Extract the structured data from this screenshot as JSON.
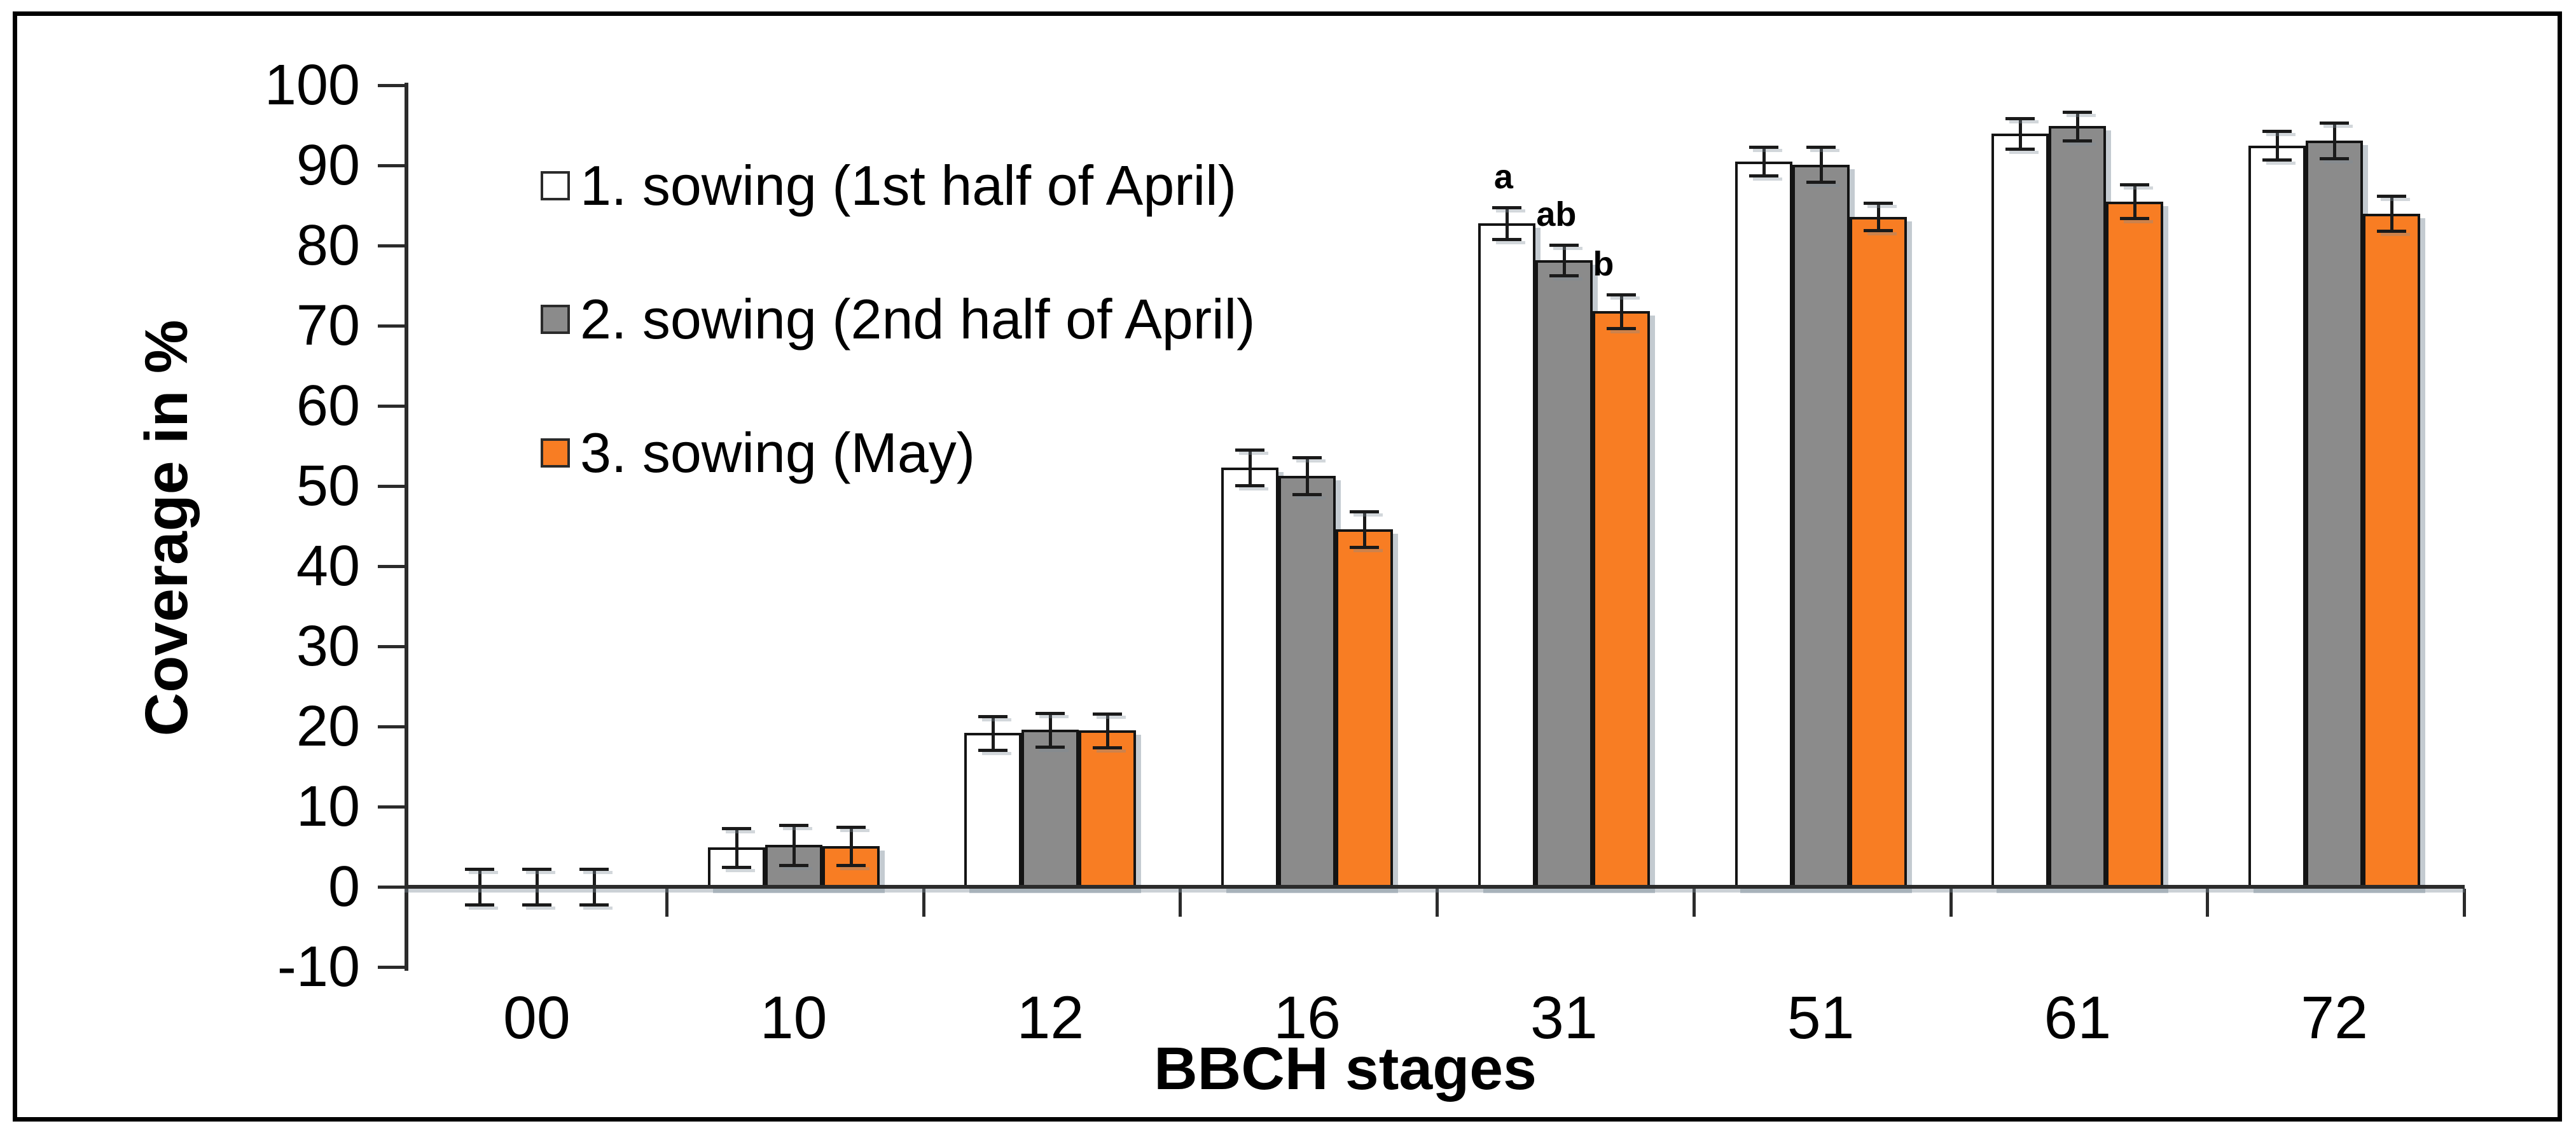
{
  "figure": {
    "kind": "bar chart with error bars",
    "background": "#ffffff",
    "border_color": "#000000"
  },
  "chart_data": {
    "type": "bar",
    "title": "",
    "xlabel": "BBCH stages",
    "ylabel": "Coverage in %",
    "ylim": [
      -10,
      100
    ],
    "ytick_step": 10,
    "yticks": [
      100,
      90,
      80,
      70,
      60,
      50,
      40,
      30,
      20,
      10,
      0,
      -10
    ],
    "grid": "off",
    "legend_position": "inside-top-left",
    "categories": [
      "00",
      "10",
      "12",
      "16",
      "31",
      "51",
      "61",
      "72"
    ],
    "series": [
      {
        "name": "1. sowing (1st half of April)",
        "color": "#ffffff",
        "values": [
          0,
          4.9,
          19.2,
          52.3,
          82.8,
          90.5,
          94.0,
          92.5
        ],
        "errors": [
          2.2,
          2.4,
          2.1,
          2.2,
          2.0,
          1.8,
          1.9,
          1.8
        ]
      },
      {
        "name": "2. sowing (2nd half of April)",
        "color": "#8b8b8b",
        "values": [
          0,
          5.2,
          19.6,
          51.3,
          78.2,
          90.1,
          94.9,
          93.1
        ],
        "errors": [
          2.2,
          2.5,
          2.1,
          2.3,
          1.9,
          2.2,
          1.8,
          2.2
        ]
      },
      {
        "name": "3. sowing (May)",
        "color": "#f87d23",
        "values": [
          0,
          5.1,
          19.5,
          44.6,
          71.8,
          83.6,
          85.5,
          84.0
        ],
        "errors": [
          2.2,
          2.4,
          2.1,
          2.2,
          2.1,
          1.7,
          2.1,
          2.2
        ]
      }
    ],
    "annotations": [
      {
        "category": "31",
        "series": 0,
        "label": "a"
      },
      {
        "category": "31",
        "series": 1,
        "label": "ab"
      },
      {
        "category": "31",
        "series": 2,
        "label": "b"
      }
    ]
  }
}
